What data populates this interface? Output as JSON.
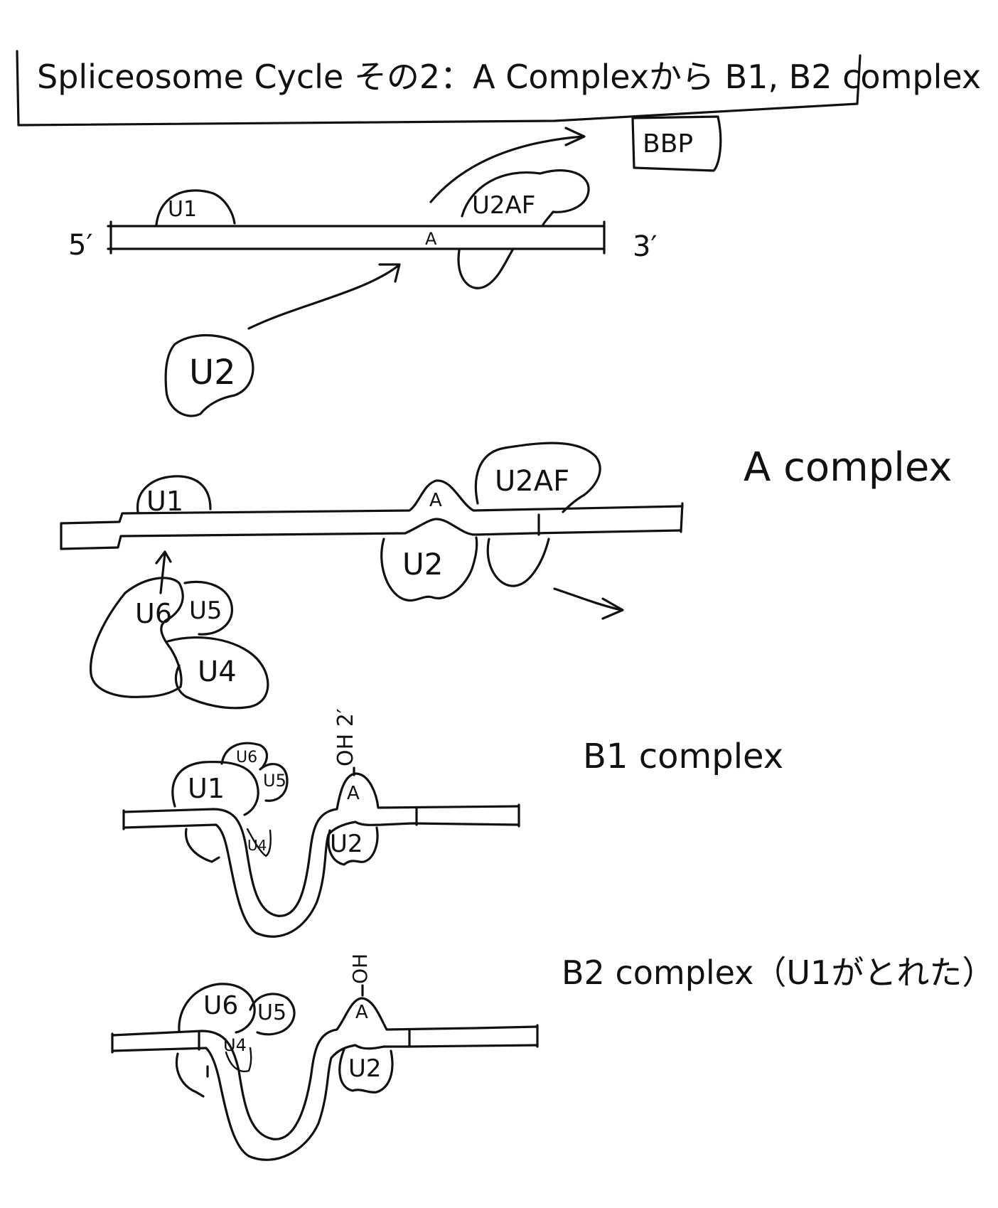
{
  "title": "Spliceosome Cycle その2：A Complexから B1, B2 complex",
  "step1": {
    "five_prime": "5′",
    "three_prime": "3′",
    "u1": "U1",
    "branch_point": "A",
    "u2af": "U2AF",
    "bbp": "BBP",
    "u2": "U2"
  },
  "a_complex": {
    "label": "A complex",
    "u1": "U1",
    "branch_point": "A",
    "u2af": "U2AF",
    "u2": "U2",
    "u6": "U6",
    "u5": "U5",
    "u4": "U4"
  },
  "b1_complex": {
    "label": "B1 complex",
    "oh": "OH 2′",
    "u1": "U1",
    "u6": "U6",
    "u5": "U5",
    "u4": "U4",
    "branch_point": "A",
    "u2": "U2"
  },
  "b2_complex": {
    "label": "B2 complex（U1がとれた）",
    "oh": "OH",
    "u6": "U6",
    "u5": "U5",
    "u4": "U4",
    "branch_point": "A",
    "u2": "U2"
  }
}
